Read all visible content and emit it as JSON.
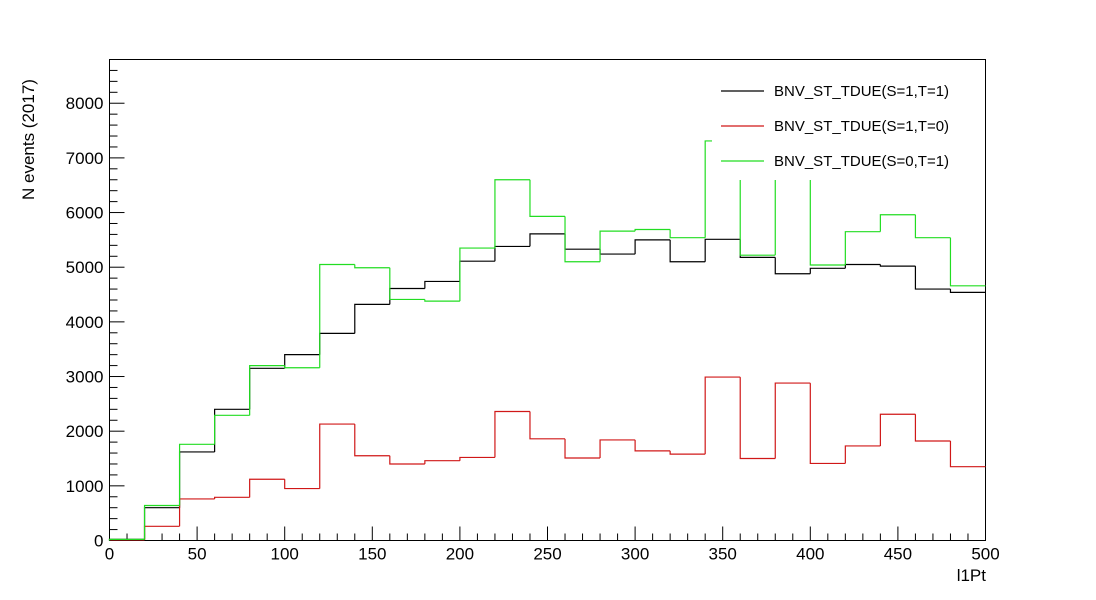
{
  "chart_data": {
    "type": "line",
    "xlabel": "l1Pt",
    "ylabel": "N events (2017)",
    "xlim": [
      0,
      500
    ],
    "ylim": [
      0,
      8800
    ],
    "x_ticks": [
      0,
      50,
      100,
      150,
      200,
      250,
      300,
      350,
      400,
      450,
      500
    ],
    "y_ticks": [
      0,
      1000,
      2000,
      3000,
      4000,
      5000,
      6000,
      7000,
      8000
    ],
    "bin_edges": [
      0,
      20,
      40,
      60,
      80,
      100,
      120,
      140,
      160,
      180,
      200,
      220,
      240,
      260,
      280,
      300,
      320,
      340,
      360,
      380,
      400,
      420,
      440,
      460,
      480,
      500
    ],
    "grid": false,
    "legend_position": "top-right",
    "style": "step histogram",
    "series": [
      {
        "name": "BNV_ST_TDUE(S=1,T=1)",
        "color": "#000000",
        "values": [
          20,
          600,
          1620,
          2400,
          3150,
          3400,
          3790,
          4320,
          4610,
          4740,
          5110,
          5380,
          5610,
          5330,
          5240,
          5500,
          5100,
          5510,
          5180,
          4880,
          4980,
          5050,
          5020,
          4600,
          4540
        ]
      },
      {
        "name": "BNV_ST_TDUE(S=1,T=0)",
        "color": "#d01818",
        "values": [
          10,
          260,
          760,
          790,
          1120,
          950,
          2130,
          1550,
          1400,
          1460,
          1520,
          2360,
          1860,
          1510,
          1840,
          1640,
          1580,
          2990,
          1500,
          2880,
          1410,
          1730,
          2310,
          1820,
          1350
        ]
      },
      {
        "name": "BNV_ST_TDUE(S=0,T=1)",
        "color": "#22dd22",
        "values": [
          20,
          640,
          1760,
          2290,
          3200,
          3160,
          5050,
          4990,
          4410,
          4380,
          5350,
          6600,
          5930,
          5100,
          5660,
          5690,
          5540,
          7310,
          5220,
          6830,
          5040,
          5650,
          5960,
          5540,
          4660
        ]
      }
    ]
  }
}
